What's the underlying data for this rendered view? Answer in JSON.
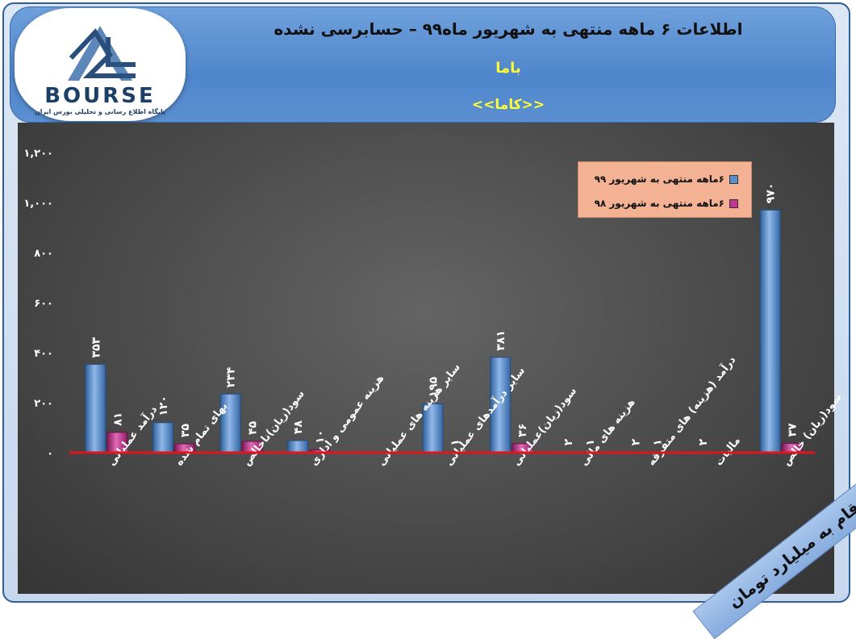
{
  "header": {
    "title": "اطلاعات ۶ ماهه منتهی به شهریور ماه۹۹ – حسابرسی نشده",
    "company": "باما",
    "symbol": "<<کاما>>"
  },
  "logo": {
    "word": "BOURSE",
    "tagline": "پایگاه اطلاع رسانی و تحلیلی بورس ایران"
  },
  "unit_note": "ارقام به میلیارد تومان",
  "colors": {
    "series_99": "#5a8fd0",
    "series_98": "#c2368f",
    "zero_line": "#e3141b"
  },
  "chart_data": {
    "type": "bar",
    "categories": [
      "درآمد عملیاتی",
      "بهای تمام شده",
      "سود(زیان)ناخالص",
      "هزینه عمومی و اداری",
      "سایر هزینه های عملیاتی",
      "سایر درآمدهای عملیاتی",
      "سود(زیان)عملیاتی",
      "هزینه های مالی",
      "درآمد (هزینه) های متفرقه",
      "مالیات",
      "سود(زیان) خالص"
    ],
    "series": [
      {
        "name": "۶ماهه منتهی به شهریور ۹۹",
        "values": [
          353,
          120,
          234,
          48,
          0,
          195,
          381,
          2,
          2,
          2,
          970
        ],
        "labels": [
          "۳۵۳",
          "۱۲۰",
          "۲۳۴",
          "۴۸",
          "",
          "۱۹۵",
          "۳۸۱",
          "۲",
          "۲",
          "۲",
          "۹۷۰"
        ]
      },
      {
        "name": "۶ماهه منتهی به شهریور ۹۸",
        "values": [
          81,
          35,
          45,
          10,
          0,
          1,
          36,
          1,
          1,
          0,
          37
        ],
        "labels": [
          "۸۱",
          "۳۵",
          "۴۵",
          "۱۰",
          "",
          "۱",
          "۳۶",
          "۱",
          "۱",
          "",
          "۳۷"
        ]
      }
    ],
    "yticks": [
      "۰",
      "۲۰۰",
      "۴۰۰",
      "۶۰۰",
      "۸۰۰",
      "۱,۰۰۰",
      "۱,۲۰۰"
    ],
    "ylim": [
      0,
      1200
    ],
    "legend_position": "top-right",
    "grid": false
  }
}
